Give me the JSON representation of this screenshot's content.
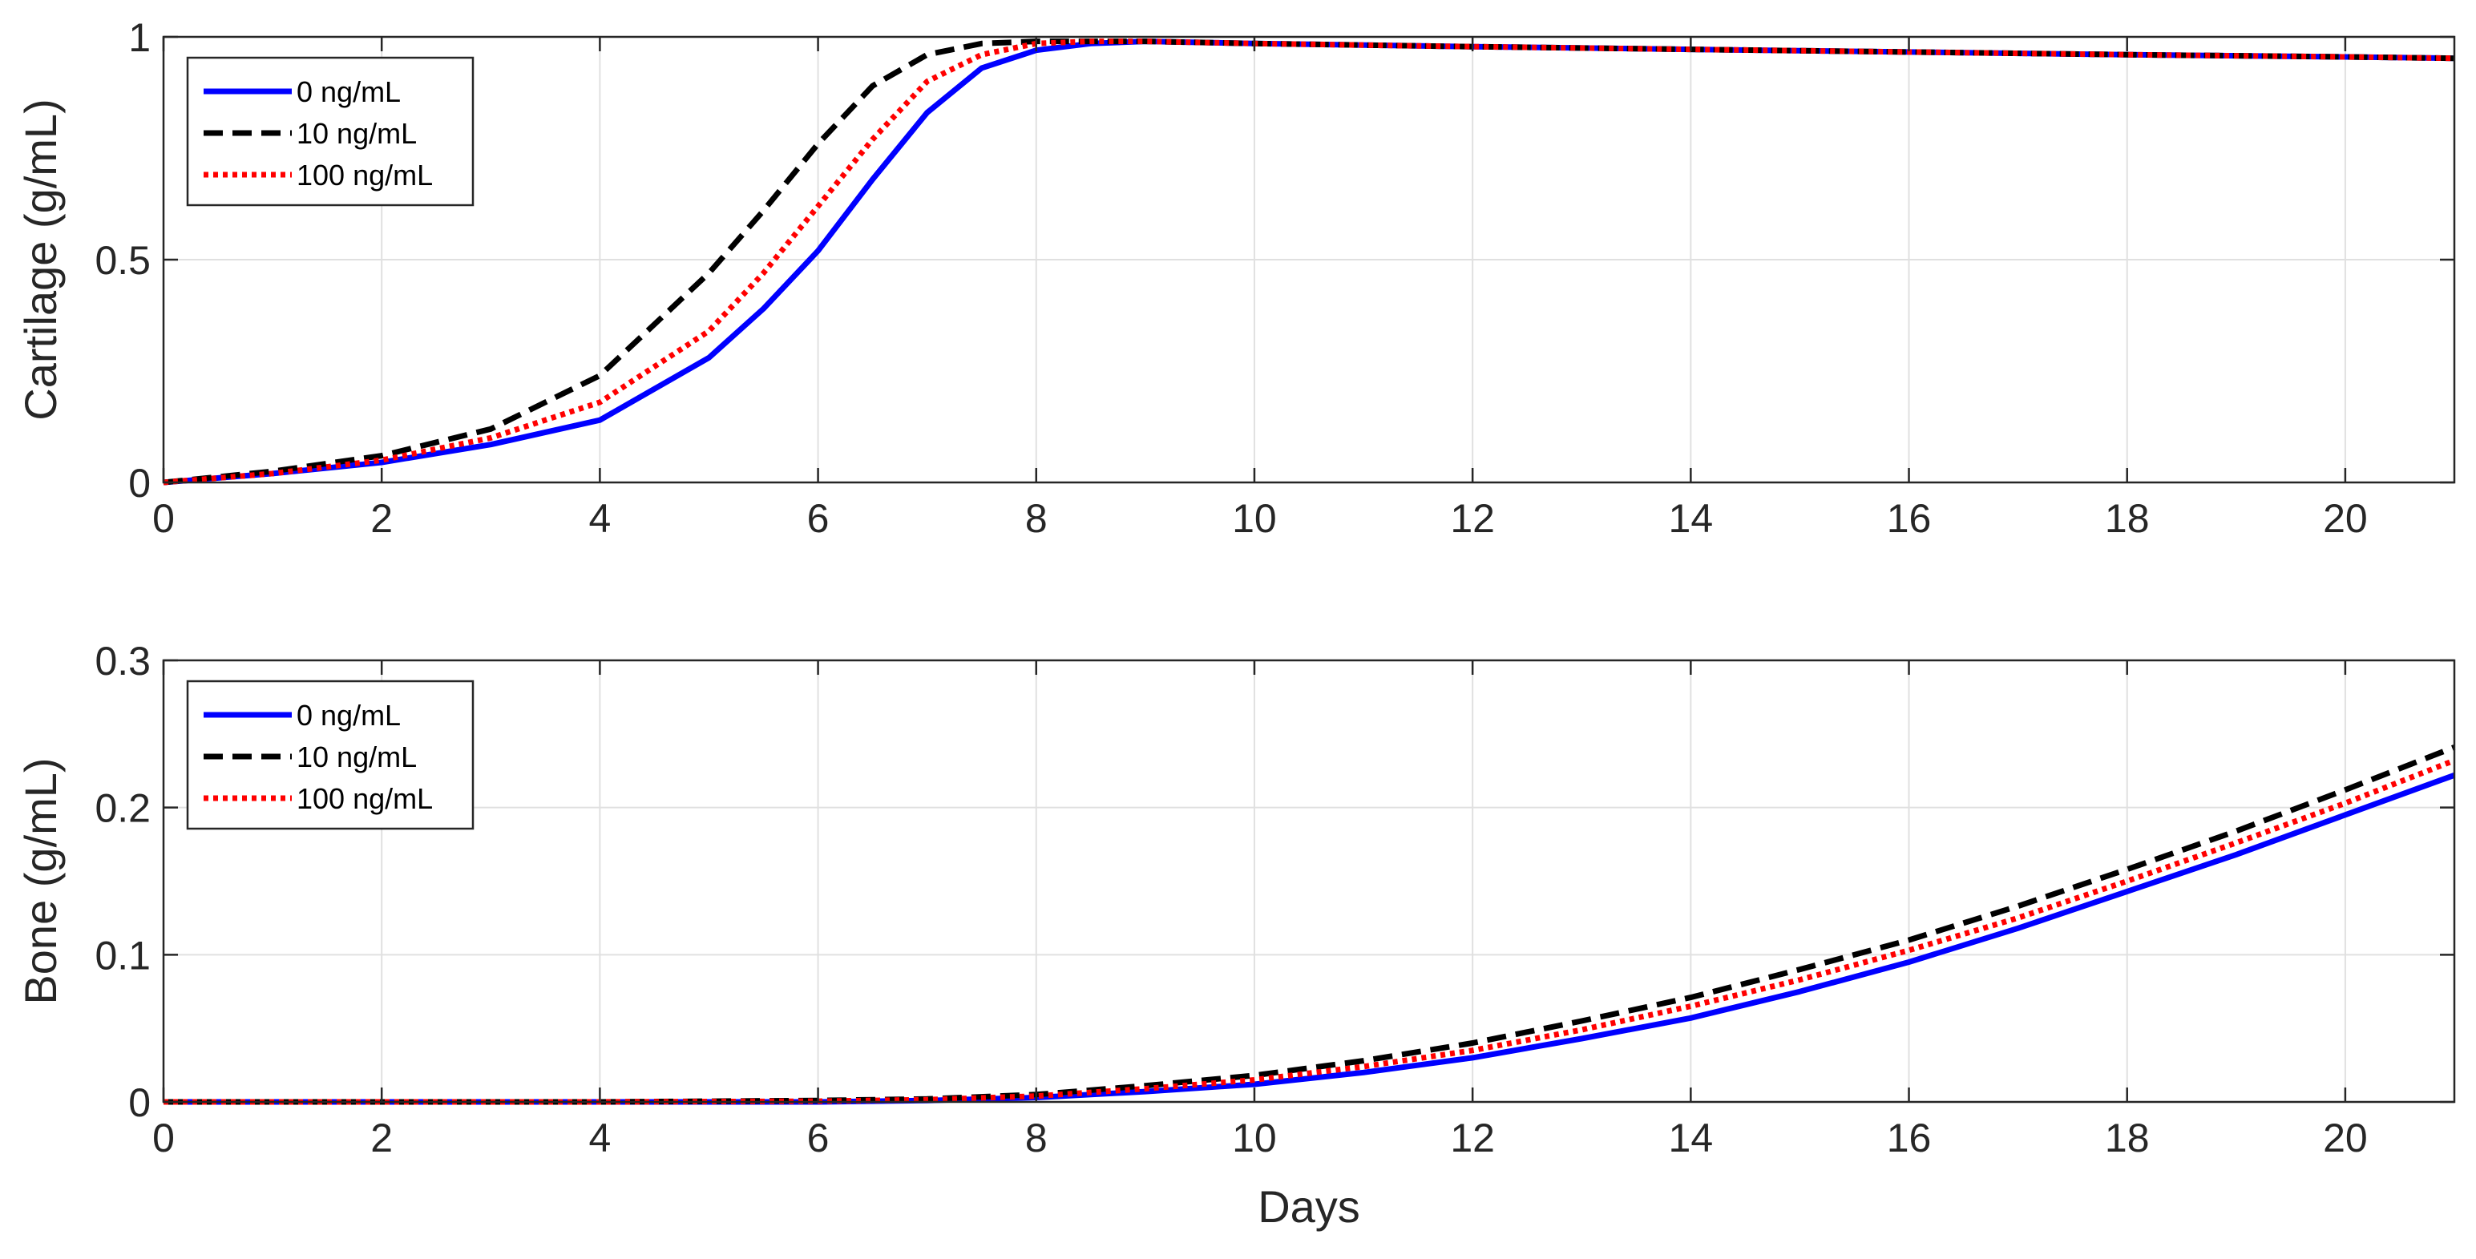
{
  "chart_data": [
    {
      "type": "line",
      "title": "",
      "xlabel": "",
      "ylabel": "Cartilage (g/mL)",
      "xlim": [
        0,
        21
      ],
      "ylim": [
        0,
        1
      ],
      "xticks": [
        0,
        2,
        4,
        6,
        8,
        10,
        12,
        14,
        16,
        18,
        20
      ],
      "yticks": [
        0,
        0.5,
        1
      ],
      "grid": true,
      "legend_position": "top-left",
      "x": [
        0,
        1,
        2,
        3,
        4,
        5,
        5.5,
        6,
        6.5,
        7,
        7.5,
        8,
        8.5,
        9,
        10,
        12,
        14,
        16,
        18,
        20,
        21
      ],
      "series": [
        {
          "name": "0 ng/mL",
          "color": "#0000ff",
          "style": "solid",
          "values": [
            0,
            0.02,
            0.045,
            0.085,
            0.14,
            0.28,
            0.39,
            0.52,
            0.68,
            0.83,
            0.93,
            0.97,
            0.985,
            0.99,
            0.985,
            0.978,
            0.972,
            0.966,
            0.96,
            0.955,
            0.952
          ]
        },
        {
          "name": "10 ng/mL",
          "color": "#000000",
          "style": "dashed",
          "values": [
            0,
            0.025,
            0.06,
            0.12,
            0.24,
            0.47,
            0.61,
            0.76,
            0.89,
            0.96,
            0.985,
            0.99,
            0.99,
            0.99,
            0.985,
            0.978,
            0.972,
            0.966,
            0.96,
            0.955,
            0.952
          ]
        },
        {
          "name": "100 ng/mL",
          "color": "#ff0000",
          "style": "dotted",
          "values": [
            0,
            0.02,
            0.05,
            0.1,
            0.18,
            0.34,
            0.47,
            0.62,
            0.77,
            0.9,
            0.96,
            0.985,
            0.99,
            0.99,
            0.985,
            0.978,
            0.972,
            0.966,
            0.96,
            0.955,
            0.952
          ]
        }
      ]
    },
    {
      "type": "line",
      "title": "",
      "xlabel": "Days",
      "ylabel": "Bone (g/mL)",
      "xlim": [
        0,
        21
      ],
      "ylim": [
        0,
        0.3
      ],
      "xticks": [
        0,
        2,
        4,
        6,
        8,
        10,
        12,
        14,
        16,
        18,
        20
      ],
      "yticks": [
        0,
        0.1,
        0.2,
        0.3
      ],
      "grid": true,
      "legend_position": "top-left",
      "x": [
        0,
        2,
        4,
        6,
        7,
        8,
        9,
        10,
        11,
        12,
        13,
        14,
        15,
        16,
        17,
        18,
        19,
        20,
        21
      ],
      "series": [
        {
          "name": "0 ng/mL",
          "color": "#0000ff",
          "style": "solid",
          "values": [
            0,
            0,
            0,
            0,
            0.001,
            0.003,
            0.007,
            0.012,
            0.02,
            0.03,
            0.043,
            0.057,
            0.075,
            0.095,
            0.118,
            0.143,
            0.168,
            0.195,
            0.222
          ]
        },
        {
          "name": "10 ng/mL",
          "color": "#000000",
          "style": "dashed",
          "values": [
            0,
            0,
            0,
            0.001,
            0.002,
            0.005,
            0.011,
            0.018,
            0.028,
            0.04,
            0.055,
            0.071,
            0.09,
            0.11,
            0.133,
            0.158,
            0.184,
            0.212,
            0.241
          ]
        },
        {
          "name": "100 ng/mL",
          "color": "#ff0000",
          "style": "dotted",
          "values": [
            0,
            0,
            0,
            0.0005,
            0.0015,
            0.004,
            0.009,
            0.015,
            0.024,
            0.035,
            0.049,
            0.065,
            0.083,
            0.103,
            0.125,
            0.15,
            0.176,
            0.203,
            0.232
          ]
        }
      ]
    }
  ]
}
